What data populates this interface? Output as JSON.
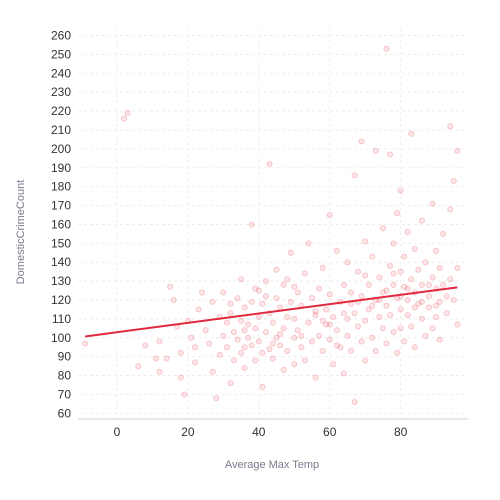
{
  "chart_data": {
    "type": "scatter",
    "title": "",
    "xlabel": "Average Max Temp",
    "ylabel": "DomesticCrimeCount",
    "xlim": [
      -11,
      99
    ],
    "ylim": [
      57,
      264
    ],
    "x_ticks": [
      0,
      20,
      40,
      60,
      80
    ],
    "y_ticks": [
      60,
      70,
      80,
      90,
      100,
      110,
      120,
      130,
      140,
      150,
      160,
      170,
      180,
      190,
      200,
      210,
      220,
      230,
      240,
      250,
      260
    ],
    "grid": true,
    "legend": "none",
    "colors": {
      "points": "#e8404f",
      "trend": "#e0293d",
      "axis": "#cfcfcf",
      "grid": "#eeeeee"
    },
    "trend_line": {
      "x": [
        -9,
        96
      ],
      "y": [
        100.7,
        126.7
      ]
    },
    "points": [
      [
        -9,
        97
      ],
      [
        2,
        216
      ],
      [
        3,
        219
      ],
      [
        6,
        85
      ],
      [
        8,
        96
      ],
      [
        11,
        89
      ],
      [
        12,
        98
      ],
      [
        12,
        82
      ],
      [
        14,
        89
      ],
      [
        15,
        127
      ],
      [
        16,
        120
      ],
      [
        17,
        106
      ],
      [
        18,
        92
      ],
      [
        18,
        79
      ],
      [
        19,
        70
      ],
      [
        20,
        109
      ],
      [
        21,
        100
      ],
      [
        22,
        95
      ],
      [
        22,
        87
      ],
      [
        23,
        115
      ],
      [
        24,
        124
      ],
      [
        25,
        104
      ],
      [
        26,
        97
      ],
      [
        27,
        82
      ],
      [
        27,
        119
      ],
      [
        28,
        68
      ],
      [
        29,
        111
      ],
      [
        29,
        91
      ],
      [
        30,
        124
      ],
      [
        30,
        101
      ],
      [
        31,
        95
      ],
      [
        31,
        108
      ],
      [
        32,
        76
      ],
      [
        32,
        113
      ],
      [
        33,
        103
      ],
      [
        33,
        88
      ],
      [
        34,
        121
      ],
      [
        34,
        99
      ],
      [
        35,
        109
      ],
      [
        35,
        92
      ],
      [
        35,
        131
      ],
      [
        36,
        84
      ],
      [
        36,
        116
      ],
      [
        37,
        100
      ],
      [
        37,
        107
      ],
      [
        38,
        96
      ],
      [
        38,
        160
      ],
      [
        38,
        119
      ],
      [
        39,
        88
      ],
      [
        39,
        105
      ],
      [
        39,
        126
      ],
      [
        40,
        111
      ],
      [
        40,
        98
      ],
      [
        41,
        92
      ],
      [
        41,
        118
      ],
      [
        41,
        74
      ],
      [
        42,
        103
      ],
      [
        42,
        130
      ],
      [
        43,
        192
      ],
      [
        43,
        94
      ],
      [
        43,
        113
      ],
      [
        44,
        108
      ],
      [
        44,
        89
      ],
      [
        45,
        121
      ],
      [
        45,
        100
      ],
      [
        45,
        136
      ],
      [
        46,
        96
      ],
      [
        46,
        116
      ],
      [
        47,
        105
      ],
      [
        47,
        83
      ],
      [
        47,
        128
      ],
      [
        48,
        111
      ],
      [
        48,
        93
      ],
      [
        49,
        119
      ],
      [
        49,
        145
      ],
      [
        50,
        100
      ],
      [
        50,
        110
      ],
      [
        50,
        86
      ],
      [
        51,
        124
      ],
      [
        51,
        104
      ],
      [
        52,
        95
      ],
      [
        52,
        117
      ],
      [
        53,
        134
      ],
      [
        53,
        88
      ],
      [
        54,
        108
      ],
      [
        54,
        150
      ],
      [
        55,
        98
      ],
      [
        55,
        121
      ],
      [
        56,
        112
      ],
      [
        56,
        79
      ],
      [
        57,
        126
      ],
      [
        57,
        101
      ],
      [
        58,
        93
      ],
      [
        58,
        137
      ],
      [
        59,
        115
      ],
      [
        59,
        107
      ],
      [
        60,
        165
      ],
      [
        60,
        99
      ],
      [
        60,
        123
      ],
      [
        61,
        111
      ],
      [
        61,
        86
      ],
      [
        62,
        146
      ],
      [
        62,
        104
      ],
      [
        63,
        119
      ],
      [
        63,
        95
      ],
      [
        64,
        128
      ],
      [
        64,
        81
      ],
      [
        65,
        110
      ],
      [
        65,
        140
      ],
      [
        65,
        101
      ],
      [
        66,
        124
      ],
      [
        66,
        93
      ],
      [
        67,
        186
      ],
      [
        67,
        113
      ],
      [
        67,
        66
      ],
      [
        68,
        106
      ],
      [
        68,
        135
      ],
      [
        69,
        98
      ],
      [
        69,
        122
      ],
      [
        69,
        204
      ],
      [
        70,
        151
      ],
      [
        70,
        109
      ],
      [
        70,
        88
      ],
      [
        71,
        128
      ],
      [
        71,
        115
      ],
      [
        72,
        100
      ],
      [
        72,
        143
      ],
      [
        73,
        120
      ],
      [
        73,
        199
      ],
      [
        73,
        93
      ],
      [
        74,
        111
      ],
      [
        74,
        132
      ],
      [
        75,
        105
      ],
      [
        75,
        158
      ],
      [
        75,
        124
      ],
      [
        76,
        253
      ],
      [
        76,
        117
      ],
      [
        76,
        97
      ],
      [
        77,
        138
      ],
      [
        77,
        112
      ],
      [
        77,
        197
      ],
      [
        78,
        128
      ],
      [
        78,
        103
      ],
      [
        78,
        150
      ],
      [
        79,
        121
      ],
      [
        79,
        92
      ],
      [
        79,
        166
      ],
      [
        80,
        115
      ],
      [
        80,
        135
      ],
      [
        80,
        178
      ],
      [
        80,
        105
      ],
      [
        81,
        127
      ],
      [
        81,
        98
      ],
      [
        81,
        143
      ],
      [
        82,
        120
      ],
      [
        82,
        112
      ],
      [
        82,
        156
      ],
      [
        83,
        208
      ],
      [
        83,
        131
      ],
      [
        83,
        106
      ],
      [
        84,
        124
      ],
      [
        84,
        95
      ],
      [
        84,
        147
      ],
      [
        85,
        118
      ],
      [
        85,
        136
      ],
      [
        86,
        110
      ],
      [
        86,
        162
      ],
      [
        86,
        128
      ],
      [
        87,
        101
      ],
      [
        87,
        140
      ],
      [
        88,
        122
      ],
      [
        88,
        116
      ],
      [
        89,
        132
      ],
      [
        89,
        105
      ],
      [
        89,
        171
      ],
      [
        90,
        126
      ],
      [
        90,
        111
      ],
      [
        90,
        146
      ],
      [
        91,
        119
      ],
      [
        91,
        99
      ],
      [
        91,
        137
      ],
      [
        92,
        128
      ],
      [
        92,
        155
      ],
      [
        93,
        113
      ],
      [
        93,
        122
      ],
      [
        94,
        212
      ],
      [
        94,
        131
      ],
      [
        94,
        168
      ],
      [
        95,
        120
      ],
      [
        95,
        183
      ],
      [
        96,
        199
      ],
      [
        96,
        137
      ],
      [
        96,
        107
      ],
      [
        32,
        118
      ],
      [
        36,
        104
      ],
      [
        40,
        125
      ],
      [
        44,
        97
      ],
      [
        48,
        131
      ],
      [
        52,
        101
      ],
      [
        56,
        114
      ],
      [
        60,
        107
      ],
      [
        64,
        113
      ],
      [
        68,
        119
      ],
      [
        72,
        117
      ],
      [
        76,
        125
      ],
      [
        80,
        122
      ],
      [
        84,
        116
      ],
      [
        88,
        128
      ],
      [
        36,
        95
      ],
      [
        42,
        122
      ],
      [
        46,
        102
      ],
      [
        50,
        127
      ],
      [
        58,
        109
      ],
      [
        62,
        96
      ],
      [
        66,
        118
      ],
      [
        70,
        133
      ],
      [
        74,
        120
      ],
      [
        78,
        134
      ],
      [
        82,
        126
      ],
      [
        86,
        119
      ],
      [
        90,
        117
      ]
    ]
  }
}
